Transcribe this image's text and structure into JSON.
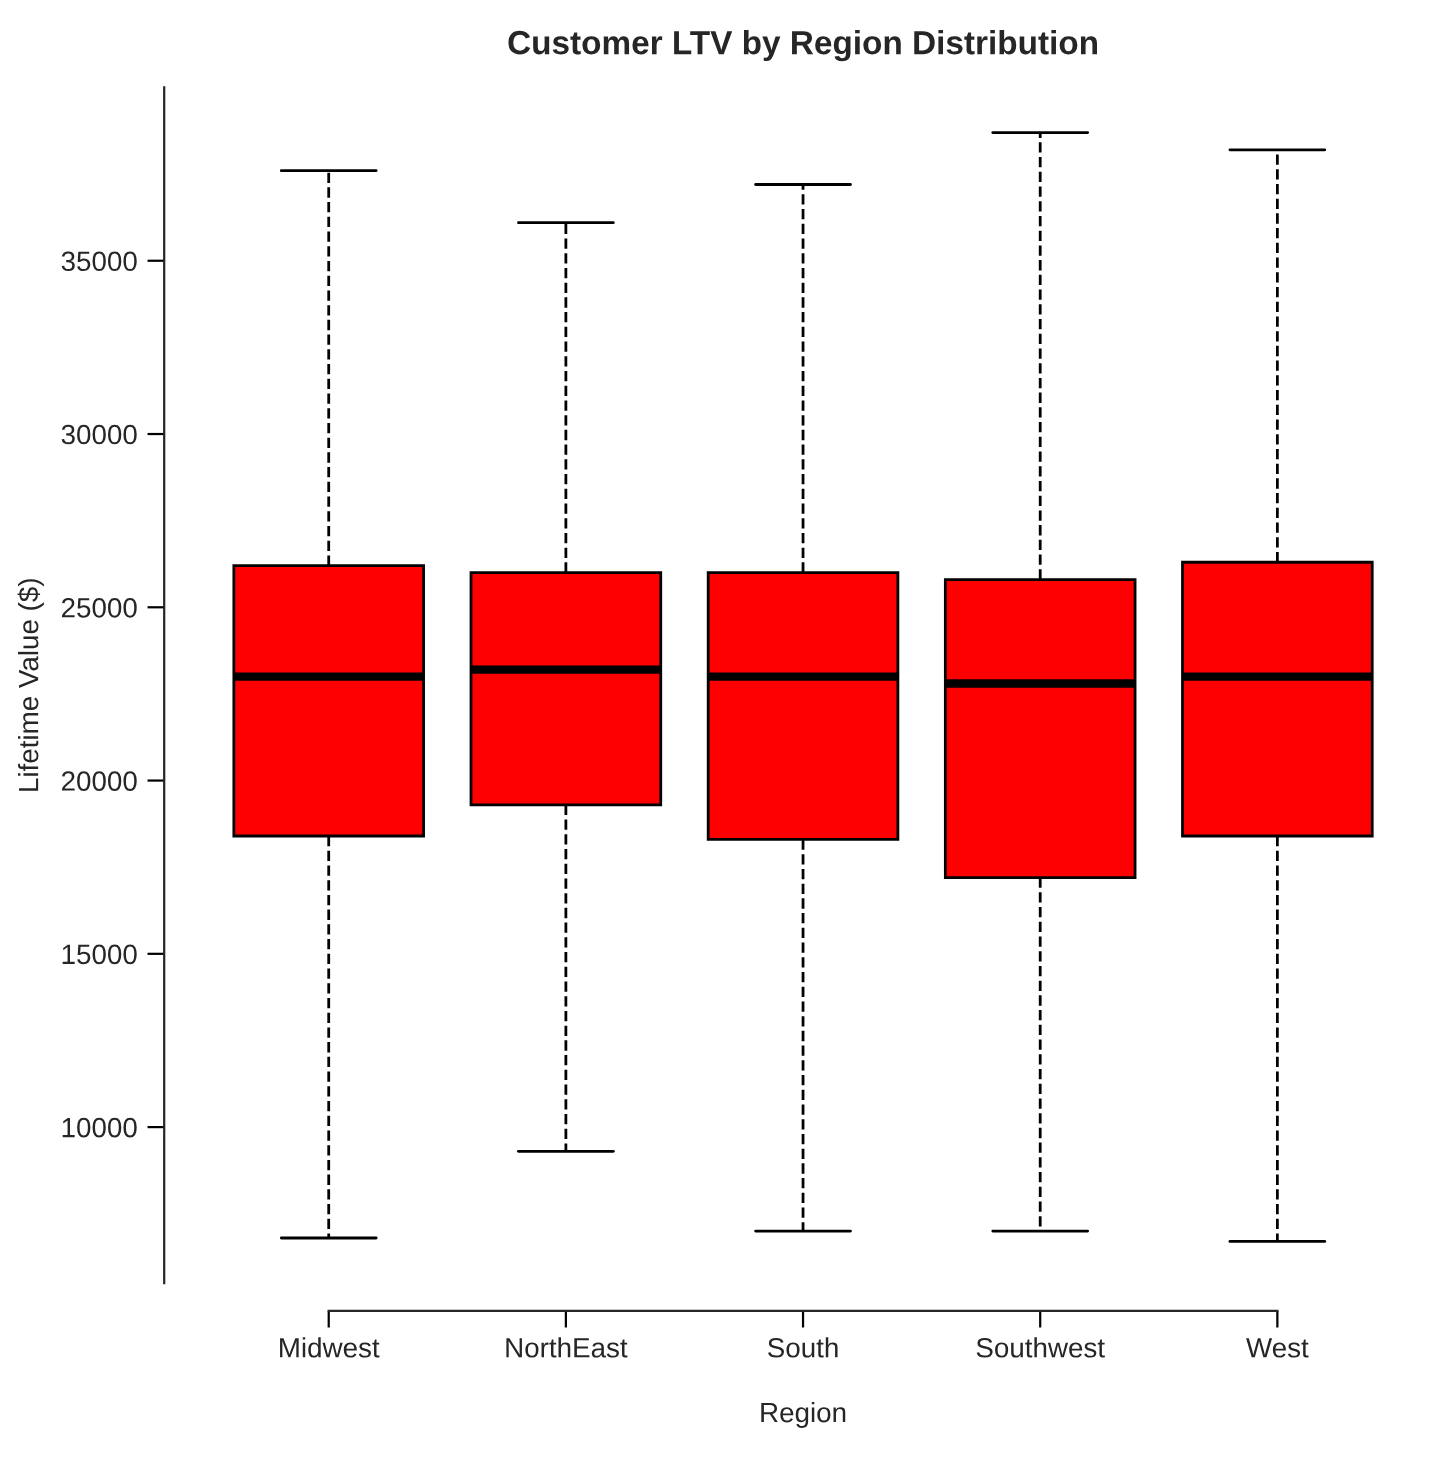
{
  "chart_data": {
    "type": "box",
    "title": "Customer LTV by Region Distribution",
    "xlabel": "Region",
    "ylabel": "Lifetime Value ($)",
    "categories": [
      "Midwest",
      "NorthEast",
      "South",
      "Southwest",
      "West"
    ],
    "color": "#ff0000",
    "boxes": [
      {
        "low": 6800,
        "q1": 18400,
        "median": 23000,
        "q3": 26200,
        "high": 37600
      },
      {
        "low": 9300,
        "q1": 19300,
        "median": 23200,
        "q3": 26000,
        "high": 36100
      },
      {
        "low": 7000,
        "q1": 18300,
        "median": 23000,
        "q3": 26000,
        "high": 37200
      },
      {
        "low": 7000,
        "q1": 17200,
        "median": 22800,
        "q3": 25800,
        "high": 38700
      },
      {
        "low": 6700,
        "q1": 18400,
        "median": 23000,
        "q3": 26300,
        "high": 38200
      }
    ],
    "ylim": [
      5500,
      40000
    ],
    "yticks": [
      10000,
      15000,
      20000,
      25000,
      30000,
      35000
    ],
    "grid": false,
    "legend": false
  }
}
